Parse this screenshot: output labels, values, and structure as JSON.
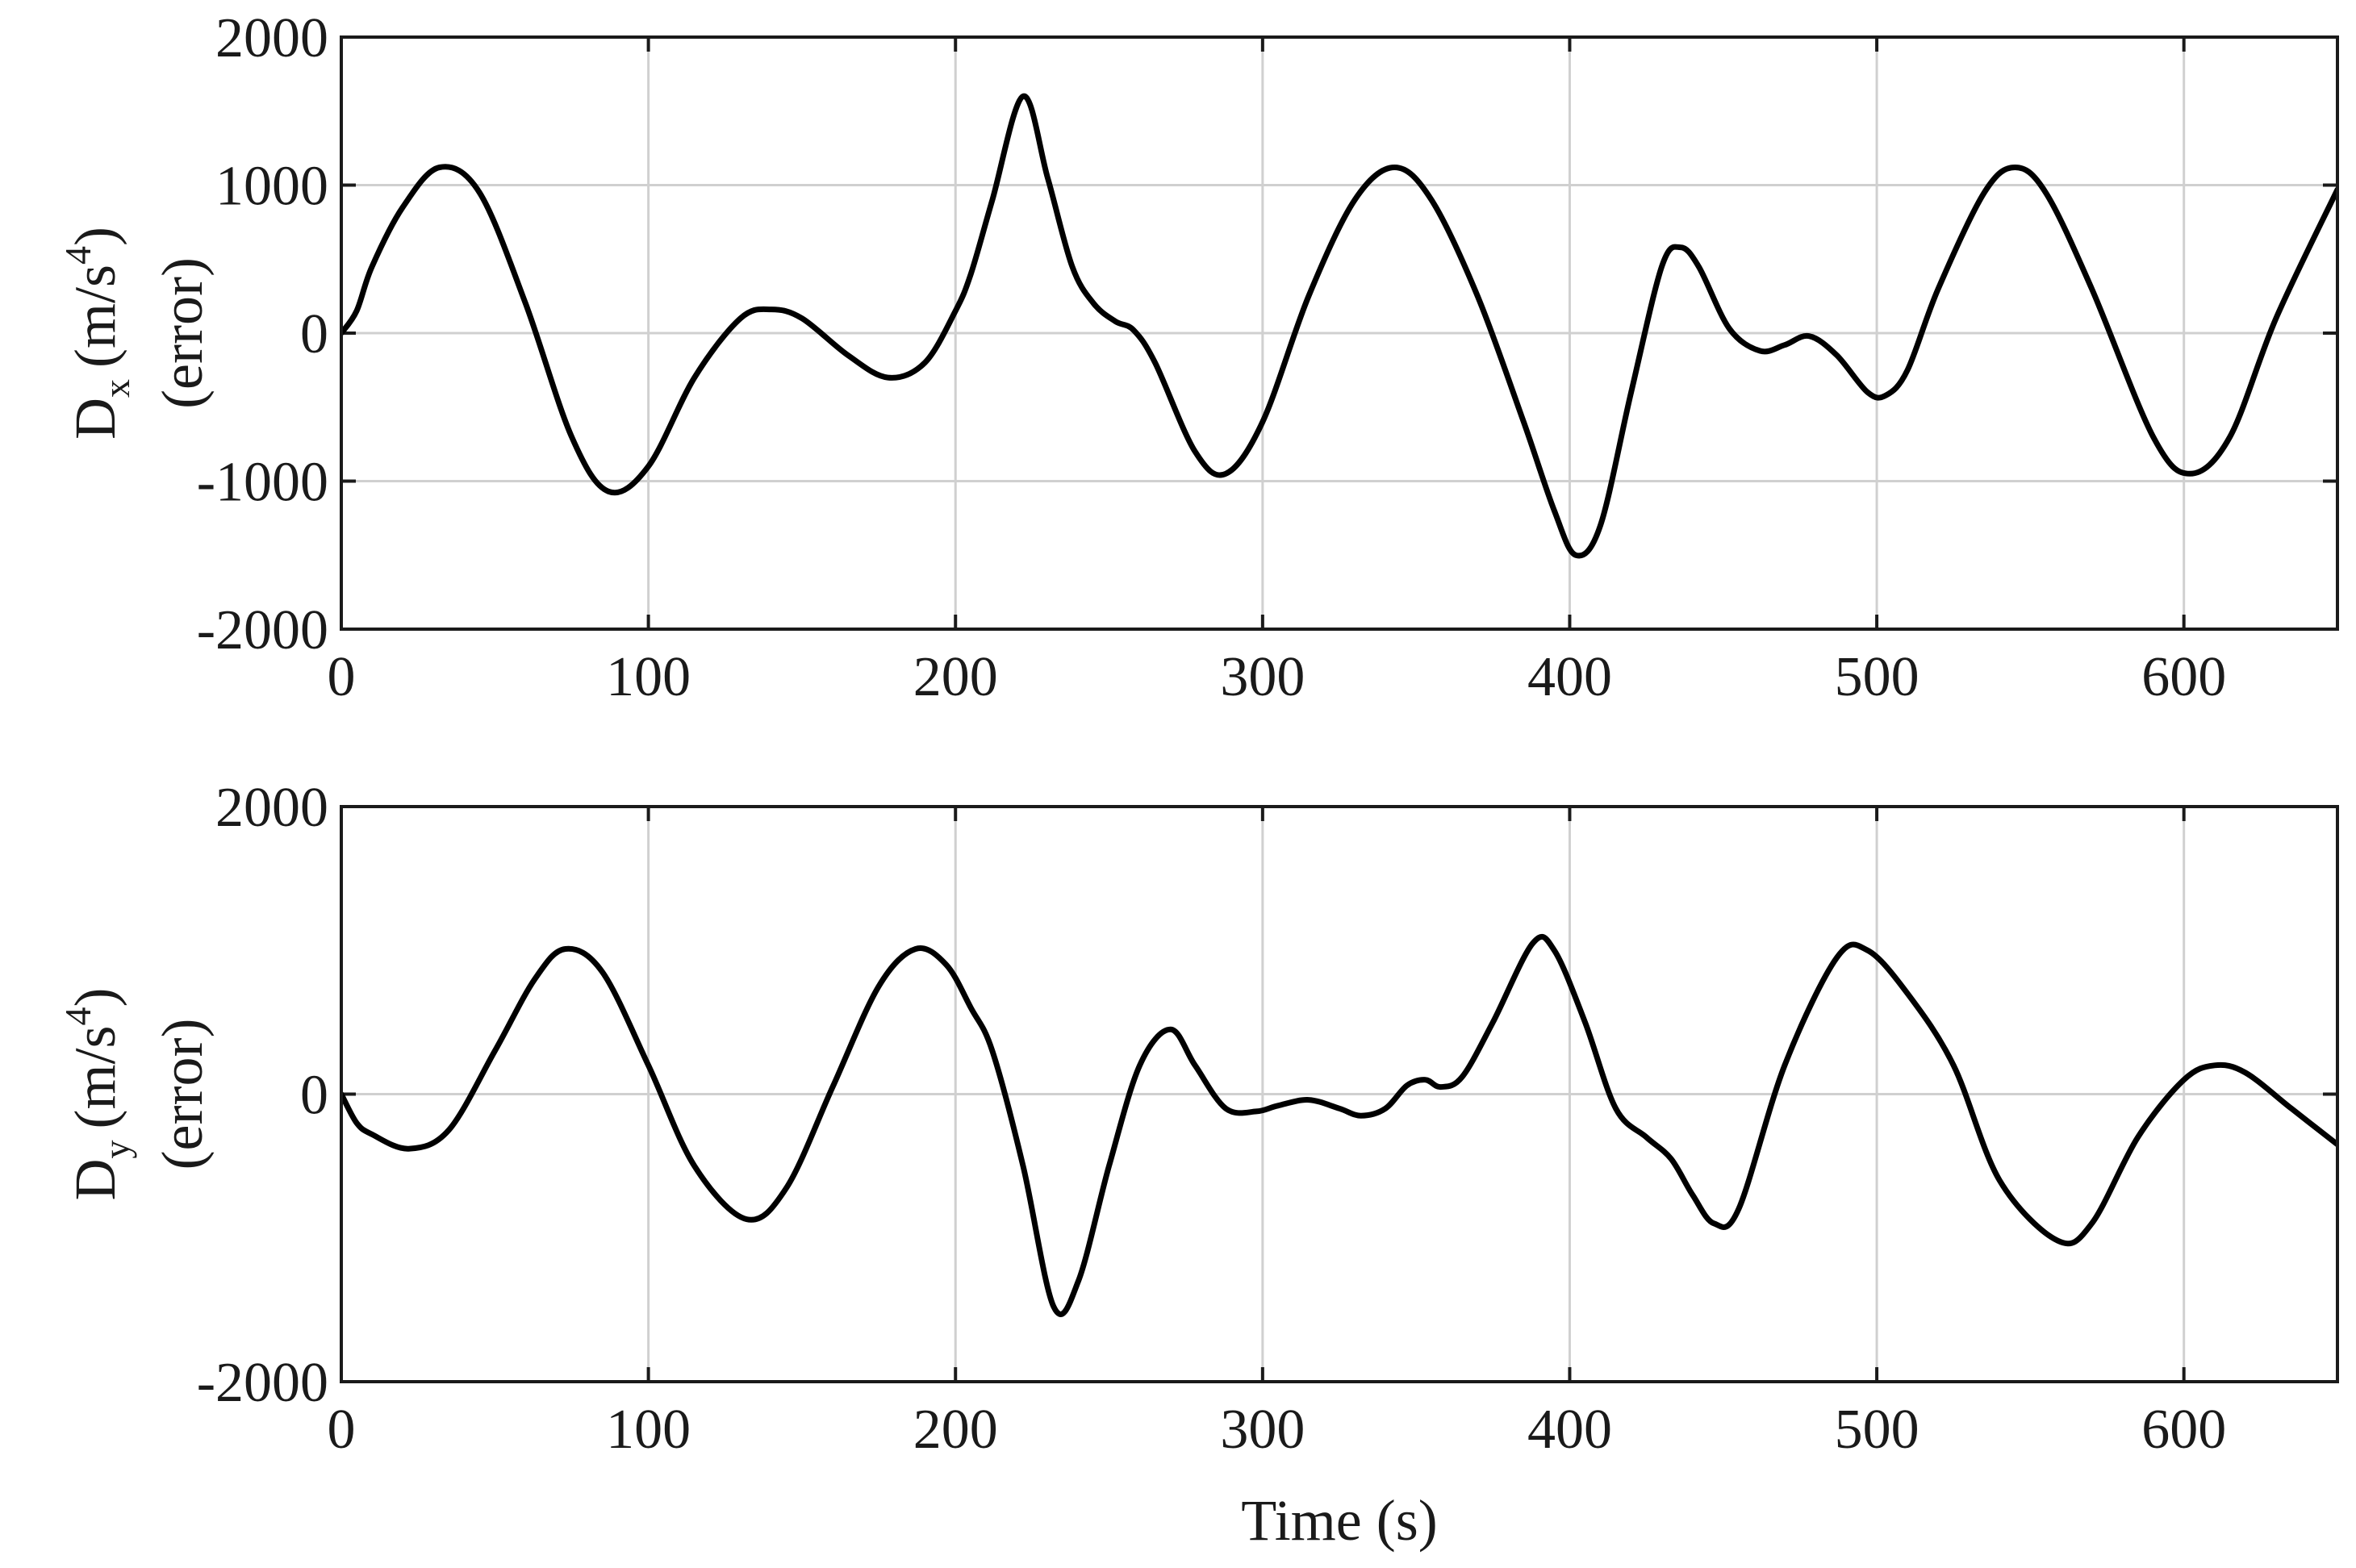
{
  "chart_data": [
    {
      "type": "line",
      "title": "",
      "ylabel": {
        "base": "D",
        "subscript": "x",
        "unit": "(m/s",
        "unit_sup": "4",
        "unit_end": ")",
        "line2": "(error)"
      },
      "xlabel": "",
      "xlim": [
        0,
        650
      ],
      "ylim": [
        -2000,
        2000
      ],
      "xticks": [
        0,
        100,
        200,
        300,
        400,
        500,
        600
      ],
      "yticks": [
        -2000,
        -1000,
        0,
        1000,
        2000
      ],
      "xtick_labels": [
        "0",
        "100",
        "200",
        "300",
        "400",
        "500",
        "600"
      ],
      "ytick_labels": [
        "-2000",
        "-1000",
        "0",
        "1000",
        "2000"
      ],
      "grid": true,
      "line_color": "#000000",
      "series": [
        {
          "x": [
            0,
            5,
            10,
            20,
            32,
            45,
            60,
            75,
            87,
            100,
            115,
            130,
            140,
            150,
            165,
            178,
            190,
            200,
            205,
            212,
            222,
            230,
            238,
            245,
            252,
            258,
            265,
            278,
            288,
            300,
            315,
            330,
            343,
            355,
            370,
            385,
            395,
            402,
            410,
            420,
            430,
            436,
            442,
            452,
            462,
            470,
            478,
            487,
            497,
            503,
            510,
            520,
            535,
            545,
            555,
            570,
            590,
            602,
            615,
            630,
            650
          ],
          "y": [
            0,
            150,
            450,
            850,
            1120,
            950,
            200,
            -700,
            -1070,
            -900,
            -300,
            100,
            160,
            100,
            -150,
            -300,
            -200,
            150,
            400,
            900,
            1600,
            1050,
            450,
            200,
            80,
            20,
            -200,
            -800,
            -950,
            -600,
            250,
            900,
            1120,
            900,
            250,
            -600,
            -1200,
            -1500,
            -1300,
            -400,
            450,
            580,
            450,
            30,
            -120,
            -80,
            -20,
            -150,
            -400,
            -420,
            -250,
            300,
            950,
            1120,
            950,
            300,
            -700,
            -950,
            -700,
            100,
            970
          ]
        }
      ]
    },
    {
      "type": "line",
      "title": "",
      "ylabel": {
        "base": "D",
        "subscript": "y",
        "unit": "(m/s",
        "unit_sup": "4",
        "unit_end": ")",
        "line2": "(error)"
      },
      "xlabel": "Time (s)",
      "xlim": [
        0,
        650
      ],
      "ylim": [
        -2000,
        2000
      ],
      "xticks": [
        0,
        100,
        200,
        300,
        400,
        500,
        600
      ],
      "yticks": [
        -2000,
        0,
        2000
      ],
      "xtick_labels": [
        "0",
        "100",
        "200",
        "300",
        "400",
        "500",
        "600"
      ],
      "ytick_labels": [
        "-2000",
        "0",
        "2000"
      ],
      "grid": true,
      "line_color": "#000000",
      "series": [
        {
          "x": [
            0,
            5,
            10,
            22,
            35,
            50,
            63,
            73,
            85,
            100,
            115,
            132,
            145,
            160,
            175,
            187,
            197,
            205,
            212,
            222,
            232,
            240,
            250,
            260,
            270,
            278,
            288,
            298,
            305,
            315,
            325,
            332,
            340,
            347,
            353,
            358,
            365,
            375,
            388,
            395,
            405,
            415,
            425,
            433,
            440,
            447,
            455,
            470,
            487,
            497,
            510,
            525,
            540,
            559,
            570,
            585,
            600,
            610,
            620,
            635,
            650
          ],
          "y": [
            0,
            -200,
            -280,
            -380,
            -250,
            300,
            800,
            1010,
            850,
            200,
            -500,
            -870,
            -650,
            50,
            750,
            1010,
            900,
            600,
            300,
            -500,
            -1480,
            -1300,
            -500,
            200,
            450,
            200,
            -100,
            -120,
            -80,
            -40,
            -100,
            -150,
            -100,
            60,
            100,
            50,
            120,
            500,
            1050,
            1000,
            500,
            -100,
            -300,
            -450,
            -700,
            -900,
            -800,
            200,
            950,
            1000,
            700,
            200,
            -600,
            -1020,
            -900,
            -300,
            100,
            200,
            150,
            -100,
            -350
          ]
        }
      ]
    }
  ]
}
